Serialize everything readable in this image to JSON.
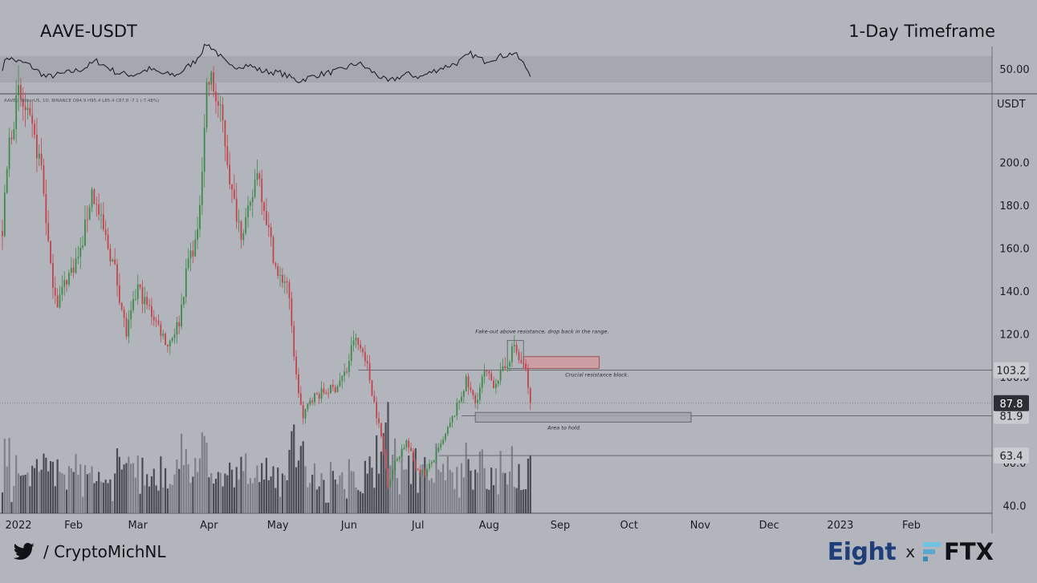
{
  "header": {
    "pair": "AAVE-USDT",
    "timeframe": "1-Day Timeframe"
  },
  "footer": {
    "handle": "/ CryptoMichNL",
    "brand_left": "Eight",
    "brand_sep": "x",
    "brand_right": "FTX"
  },
  "colors": {
    "background": "#b3b5bd",
    "up": "#3f8a4a",
    "down": "#c1454c",
    "resistance_fill": "#cf9aa0",
    "support_fill": "#a2a6af",
    "ink": "#1b1d24"
  },
  "chart_data": {
    "type": "candlestick",
    "symbol_info": "AAVE / TetherUS, 1D, BINANCE  O94.9 H95.4 L85.4 C87.8 -7.1 (-7.48%)",
    "currency": "USDT",
    "ylim": [
      38,
      232
    ],
    "y_ticks": [
      40.0,
      60.0,
      80.0,
      100.0,
      120.0,
      140.0,
      160.0,
      180.0,
      200.0
    ],
    "x_ticks": [
      "2022",
      "Feb",
      "Mar",
      "Apr",
      "May",
      "Jun",
      "Jul",
      "Aug",
      "Sep",
      "Oct",
      "Nov",
      "Dec",
      "2023",
      "Feb"
    ],
    "price_anchors": [
      [
        "2022-01-01",
        168
      ],
      [
        "2022-01-04",
        210
      ],
      [
        "2022-01-08",
        232
      ],
      [
        "2022-01-14",
        214
      ],
      [
        "2022-01-18",
        198
      ],
      [
        "2022-01-22",
        150
      ],
      [
        "2022-01-25",
        135
      ],
      [
        "2022-01-29",
        146
      ],
      [
        "2022-02-04",
        158
      ],
      [
        "2022-02-09",
        187
      ],
      [
        "2022-02-14",
        168
      ],
      [
        "2022-02-19",
        150
      ],
      [
        "2022-02-24",
        120
      ],
      [
        "2022-03-01",
        142
      ],
      [
        "2022-03-04",
        135
      ],
      [
        "2022-03-08",
        128
      ],
      [
        "2022-03-14",
        115
      ],
      [
        "2022-03-19",
        126
      ],
      [
        "2022-03-23",
        155
      ],
      [
        "2022-03-27",
        165
      ],
      [
        "2022-03-31",
        236
      ],
      [
        "2022-04-02",
        238
      ],
      [
        "2022-04-07",
        218
      ],
      [
        "2022-04-11",
        185
      ],
      [
        "2022-04-15",
        168
      ],
      [
        "2022-04-19",
        178
      ],
      [
        "2022-04-22",
        198
      ],
      [
        "2022-04-27",
        168
      ],
      [
        "2022-05-01",
        146
      ],
      [
        "2022-05-05",
        145
      ],
      [
        "2022-05-09",
        100
      ],
      [
        "2022-05-12",
        80
      ],
      [
        "2022-05-15",
        90
      ],
      [
        "2022-05-21",
        93
      ],
      [
        "2022-05-26",
        95
      ],
      [
        "2022-05-31",
        103
      ],
      [
        "2022-06-03",
        118
      ],
      [
        "2022-06-08",
        110
      ],
      [
        "2022-06-12",
        88
      ],
      [
        "2022-06-15",
        72
      ],
      [
        "2022-06-18",
        50
      ],
      [
        "2022-06-21",
        60
      ],
      [
        "2022-06-26",
        70
      ],
      [
        "2022-06-30",
        58
      ],
      [
        "2022-07-04",
        55
      ],
      [
        "2022-07-08",
        62
      ],
      [
        "2022-07-12",
        70
      ],
      [
        "2022-07-18",
        86
      ],
      [
        "2022-07-22",
        98
      ],
      [
        "2022-07-26",
        88
      ],
      [
        "2022-07-30",
        102
      ],
      [
        "2022-08-03",
        97
      ],
      [
        "2022-08-08",
        104
      ],
      [
        "2022-08-12",
        115
      ],
      [
        "2022-08-14",
        108
      ],
      [
        "2022-08-17",
        103
      ],
      [
        "2022-08-19",
        87.8
      ]
    ],
    "rsi_anchors": [
      [
        "2022-01-01",
        51
      ],
      [
        "2022-01-03",
        62
      ],
      [
        "2022-01-07",
        58
      ],
      [
        "2022-01-12",
        55
      ],
      [
        "2022-01-20",
        42
      ],
      [
        "2022-01-27",
        45
      ],
      [
        "2022-02-05",
        50
      ],
      [
        "2022-02-11",
        58
      ],
      [
        "2022-02-20",
        46
      ],
      [
        "2022-02-27",
        44
      ],
      [
        "2022-03-06",
        50
      ],
      [
        "2022-03-12",
        45
      ],
      [
        "2022-03-18",
        44
      ],
      [
        "2022-03-26",
        58
      ],
      [
        "2022-03-31",
        75
      ],
      [
        "2022-04-03",
        70
      ],
      [
        "2022-04-10",
        52
      ],
      [
        "2022-04-18",
        54
      ],
      [
        "2022-04-24",
        48
      ],
      [
        "2022-05-02",
        46
      ],
      [
        "2022-05-10",
        38
      ],
      [
        "2022-05-18",
        44
      ],
      [
        "2022-05-27",
        48
      ],
      [
        "2022-06-05",
        56
      ],
      [
        "2022-06-12",
        46
      ],
      [
        "2022-06-18",
        37
      ],
      [
        "2022-06-26",
        45
      ],
      [
        "2022-07-02",
        42
      ],
      [
        "2022-07-10",
        50
      ],
      [
        "2022-07-18",
        56
      ],
      [
        "2022-07-24",
        65
      ],
      [
        "2022-07-30",
        58
      ],
      [
        "2022-08-05",
        62
      ],
      [
        "2022-08-12",
        66
      ],
      [
        "2022-08-16",
        55
      ],
      [
        "2022-08-19",
        45
      ]
    ],
    "rsi_level": 50.0,
    "horizontal_levels": [
      {
        "price": 103.2,
        "label": "103.2",
        "from": "2022-06-05"
      },
      {
        "price": 81.9,
        "label": "81.9",
        "from": "2022-07-20"
      },
      {
        "price": 63.4,
        "label": "63.4",
        "from": "2022-07-10"
      }
    ],
    "current_price": {
      "price": 87.8,
      "label": "87.8"
    },
    "zones": [
      {
        "kind": "resistance",
        "from": "2022-08-16",
        "to": "2022-09-18",
        "low": 104,
        "high": 109.5,
        "label": "Crucial resistance block."
      },
      {
        "kind": "fakeout",
        "from": "2022-08-09",
        "to": "2022-08-16",
        "low": 104,
        "high": 117,
        "label": "Fake-out above resistance, drop back in the range."
      },
      {
        "kind": "support",
        "from": "2022-07-26",
        "to": "2022-10-28",
        "low": 79,
        "high": 83.5,
        "label": "Area to hold."
      }
    ]
  }
}
